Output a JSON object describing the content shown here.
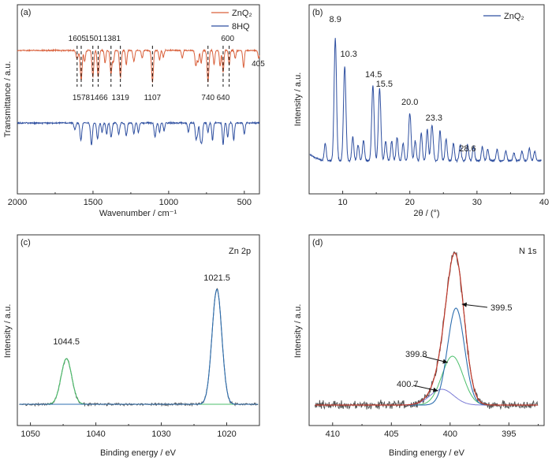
{
  "colors": {
    "zn": "#d9603b",
    "hq": "#2e4fa0",
    "noisy": "#555555",
    "fit_blue": "#2e6fb0",
    "fit_green": "#4bbf6b",
    "fit_red": "#c0392b",
    "fit_violet": "#7b7bd6"
  },
  "chart_data": [
    {
      "panel": "(a)",
      "type": "line",
      "xlabel": "Wavenumber / cm⁻¹",
      "ylabel": "Transmittance / a.u.",
      "xlim": [
        2000,
        400
      ],
      "x_reversed": true,
      "xticks": [
        "2000",
        "1500",
        "1000",
        "500"
      ],
      "series": [
        {
          "name": "ZnQ₂",
          "color": "#d9603b"
        },
        {
          "name": "8HQ",
          "color": "#2e4fa0"
        }
      ],
      "peaks_top": [
        "1605",
        "1501",
        "1381",
        "600",
        "405"
      ],
      "peaks_bottom": [
        "1578",
        "1466",
        "1319",
        "1107",
        "740",
        "640"
      ],
      "dashed_lines_at": [
        1605,
        1578,
        1501,
        1466,
        1381,
        1319,
        1107,
        740,
        640,
        600
      ]
    },
    {
      "panel": "(b)",
      "type": "line",
      "xlabel": "2θ / (°)",
      "ylabel": "Intensity / a.u.",
      "xlim": [
        5,
        40
      ],
      "xticks": [
        "10",
        "20",
        "30",
        "40"
      ],
      "series": [
        {
          "name": "ZnQ₂",
          "color": "#2e4fa0"
        }
      ],
      "peaks": [
        {
          "x": 8.9,
          "label": "8.9"
        },
        {
          "x": 10.3,
          "label": "10.3"
        },
        {
          "x": 14.5,
          "label": "14.5"
        },
        {
          "x": 15.5,
          "label": "15.5"
        },
        {
          "x": 20.0,
          "label": "20.0"
        },
        {
          "x": 23.3,
          "label": "23.3"
        },
        {
          "x": 28.6,
          "label": "28.6"
        }
      ]
    },
    {
      "panel": "(c)",
      "type": "line",
      "title": "Zn 2p",
      "xlabel": "Binding energy / eV",
      "ylabel": "Intensity / a.u.",
      "xlim": [
        1052,
        1015
      ],
      "x_reversed": true,
      "xticks": [
        "1050",
        "1040",
        "1030",
        "1020"
      ],
      "peaks": [
        {
          "x": 1044.5,
          "label": "1044.5"
        },
        {
          "x": 1021.5,
          "label": "1021.5"
        }
      ]
    },
    {
      "panel": "(d)",
      "type": "line",
      "title": "N 1s",
      "xlabel": "Binding energy / eV",
      "ylabel": "Intensity / a.u.",
      "xlim": [
        412,
        392
      ],
      "x_reversed": true,
      "xticks": [
        "410",
        "405",
        "400",
        "395"
      ],
      "peaks": [
        {
          "x": 399.5,
          "label": "399.5"
        },
        {
          "x": 399.8,
          "label": "399.8"
        },
        {
          "x": 400.7,
          "label": "400.7"
        }
      ]
    }
  ]
}
